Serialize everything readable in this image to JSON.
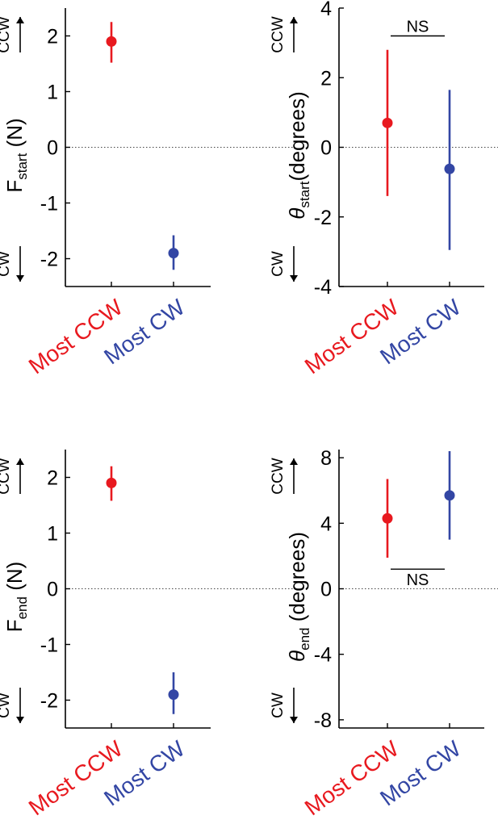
{
  "colors": {
    "most_ccw": "#e8191f",
    "most_cw": "#3346a4",
    "axis": "#000000",
    "zero_line": "#444444"
  },
  "labels": {
    "ccw": "CCW",
    "cw": "CW",
    "ns": "NS"
  },
  "chart_data": [
    {
      "id": "f-start",
      "type": "scatter",
      "ylabel_main": "F",
      "ylabel_sub": "start",
      "ylabel_rest": " (N)",
      "greek": false,
      "ylim": [
        -2.5,
        2.5
      ],
      "yticks": [
        2,
        1,
        0,
        -1,
        -2
      ],
      "ytick_labels": [
        "2",
        "1",
        "0",
        "-1",
        "-2"
      ],
      "categories": [
        "Most CCW",
        "Most CW"
      ],
      "series": [
        {
          "category": "Most CCW",
          "mean": 1.9,
          "lower": 1.52,
          "upper": 2.25,
          "color": "#e8191f"
        },
        {
          "category": "Most CW",
          "mean": -1.9,
          "lower": -2.2,
          "upper": -1.58,
          "color": "#3346a4"
        }
      ],
      "significance": null
    },
    {
      "id": "theta-start",
      "type": "scatter",
      "ylabel_main": "θ",
      "ylabel_sub": "start",
      "ylabel_rest": "(degrees)",
      "greek": true,
      "ylim": [
        -4,
        4
      ],
      "yticks": [
        4,
        2,
        0,
        -2,
        -4
      ],
      "ytick_labels": [
        "4",
        "2",
        "0",
        "-2",
        "-4"
      ],
      "categories": [
        "Most CCW",
        "Most CW"
      ],
      "series": [
        {
          "category": "Most CCW",
          "mean": 0.7,
          "lower": -1.4,
          "upper": 2.8,
          "color": "#e8191f"
        },
        {
          "category": "Most CW",
          "mean": -0.62,
          "lower": -2.95,
          "upper": 1.65,
          "color": "#3346a4"
        }
      ],
      "significance": {
        "label": "NS",
        "y": 3.2,
        "label_position": "above"
      }
    },
    {
      "id": "f-end",
      "type": "scatter",
      "ylabel_main": "F",
      "ylabel_sub": "end",
      "ylabel_rest": " (N)",
      "greek": false,
      "ylim": [
        -2.5,
        2.5
      ],
      "yticks": [
        2,
        1,
        0,
        -1,
        -2
      ],
      "ytick_labels": [
        "2",
        "1",
        "0",
        "-1",
        "-2"
      ],
      "categories": [
        "Most CCW",
        "Most CW"
      ],
      "series": [
        {
          "category": "Most CCW",
          "mean": 1.9,
          "lower": 1.58,
          "upper": 2.2,
          "color": "#e8191f"
        },
        {
          "category": "Most CW",
          "mean": -1.9,
          "lower": -2.25,
          "upper": -1.5,
          "color": "#3346a4"
        }
      ],
      "significance": null
    },
    {
      "id": "theta-end",
      "type": "scatter",
      "ylabel_main": "θ",
      "ylabel_sub": "end",
      "ylabel_rest": " (degrees)",
      "greek": true,
      "ylim": [
        -8.5,
        8.5
      ],
      "yticks": [
        8,
        4,
        0,
        -4,
        -8
      ],
      "ytick_labels": [
        "8",
        "4",
        "0",
        "-4",
        "-8"
      ],
      "categories": [
        "Most CCW",
        "Most CW"
      ],
      "series": [
        {
          "category": "Most CCW",
          "mean": 4.3,
          "lower": 1.9,
          "upper": 6.7,
          "color": "#e8191f"
        },
        {
          "category": "Most CW",
          "mean": 5.7,
          "lower": 3.0,
          "upper": 8.4,
          "color": "#3346a4"
        }
      ],
      "significance": {
        "label": "NS",
        "y": 1.2,
        "label_position": "below"
      }
    }
  ]
}
